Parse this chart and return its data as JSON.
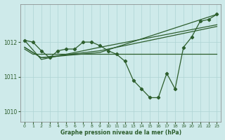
{
  "xlabel": "Graphe pression niveau de la mer (hPa)",
  "bg_color": "#ceeaea",
  "grid_color": "#aed4d4",
  "line_color": "#2d5e2d",
  "ylim": [
    1009.7,
    1013.1
  ],
  "xlim": [
    -0.5,
    23.5
  ],
  "yticks": [
    1010,
    1011,
    1012
  ],
  "xticks": [
    0,
    1,
    2,
    3,
    4,
    5,
    6,
    7,
    8,
    9,
    10,
    11,
    12,
    13,
    14,
    15,
    16,
    17,
    18,
    19,
    20,
    21,
    22,
    23
  ],
  "series": [
    {
      "x": [
        0,
        1,
        2,
        3,
        4,
        5,
        6,
        7,
        8,
        9,
        10,
        11,
        12,
        13,
        14,
        15,
        16,
        17,
        18,
        19,
        20,
        21,
        22,
        23
      ],
      "y": [
        1012.05,
        1012.0,
        1011.75,
        1011.55,
        1011.75,
        1011.8,
        1011.8,
        1012.0,
        1012.0,
        1011.9,
        1011.75,
        1011.65,
        1011.45,
        1010.9,
        1010.65,
        1010.4,
        1010.4,
        1011.1,
        1010.65,
        1011.85,
        1012.15,
        1012.6,
        1012.65,
        1012.8
      ],
      "has_markers": true
    },
    {
      "x": [
        0,
        1,
        16,
        23
      ],
      "y": [
        1011.8,
        1011.65,
        1011.65,
        1011.65
      ],
      "has_markers": false
    },
    {
      "x": [
        0,
        2,
        9,
        23
      ],
      "y": [
        1011.85,
        1011.55,
        1011.7,
        1012.8
      ],
      "has_markers": false
    },
    {
      "x": [
        0,
        2,
        9,
        23
      ],
      "y": [
        1011.85,
        1011.55,
        1011.75,
        1012.45
      ],
      "has_markers": false
    },
    {
      "x": [
        0,
        2,
        9,
        23
      ],
      "y": [
        1012.05,
        1011.5,
        1011.85,
        1012.5
      ],
      "has_markers": false
    }
  ]
}
